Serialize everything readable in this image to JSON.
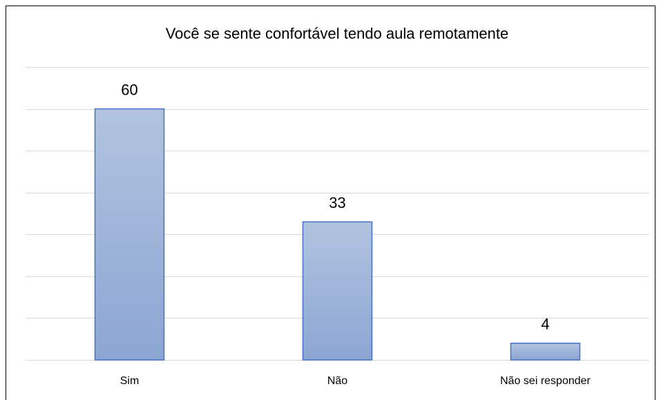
{
  "chart_data": {
    "type": "bar",
    "title": "Você se sente confortável tendo aula remotamente",
    "categories": [
      "Sim",
      "Não",
      "Não sei responder"
    ],
    "values": [
      60,
      33,
      4
    ],
    "color": "#4472c4",
    "ylim": [
      0,
      70
    ],
    "yticks": [
      0,
      10,
      20,
      30,
      40,
      50,
      60,
      70
    ],
    "grid": true
  }
}
